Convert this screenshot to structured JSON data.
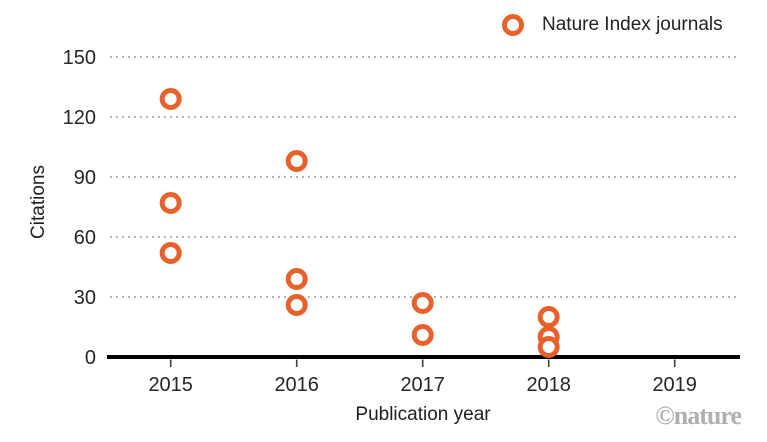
{
  "legend": {
    "label": "Nature Index journals",
    "marker_color": "#E8602C"
  },
  "watermark": "©nature",
  "colors": {
    "accent_orange": "#E8602C",
    "gridline_gray": "#909090",
    "axis_black": "#000000",
    "text_dark": "#262626",
    "watermark_gray": "#b0b0b0"
  },
  "chart_data": {
    "type": "scatter",
    "title": "",
    "xlabel": "Publication year",
    "ylabel": "Citations",
    "x_ticks": [
      2015,
      2016,
      2017,
      2018,
      2019
    ],
    "y_ticks": [
      0,
      30,
      60,
      90,
      120,
      150
    ],
    "xlim": [
      2014.5,
      2019.5
    ],
    "ylim": [
      0,
      150
    ],
    "grid": "horizontal-dotted",
    "legend_position": "top-right",
    "marker": "open-circle",
    "series": [
      {
        "name": "Nature Index journals",
        "color": "#E8602C",
        "points": [
          {
            "x": 2015,
            "y": 129
          },
          {
            "x": 2015,
            "y": 77
          },
          {
            "x": 2015,
            "y": 52
          },
          {
            "x": 2016,
            "y": 98
          },
          {
            "x": 2016,
            "y": 39
          },
          {
            "x": 2016,
            "y": 26
          },
          {
            "x": 2017,
            "y": 27
          },
          {
            "x": 2017,
            "y": 11
          },
          {
            "x": 2018,
            "y": 20
          },
          {
            "x": 2018,
            "y": 10
          },
          {
            "x": 2018,
            "y": 5
          }
        ]
      }
    ]
  }
}
